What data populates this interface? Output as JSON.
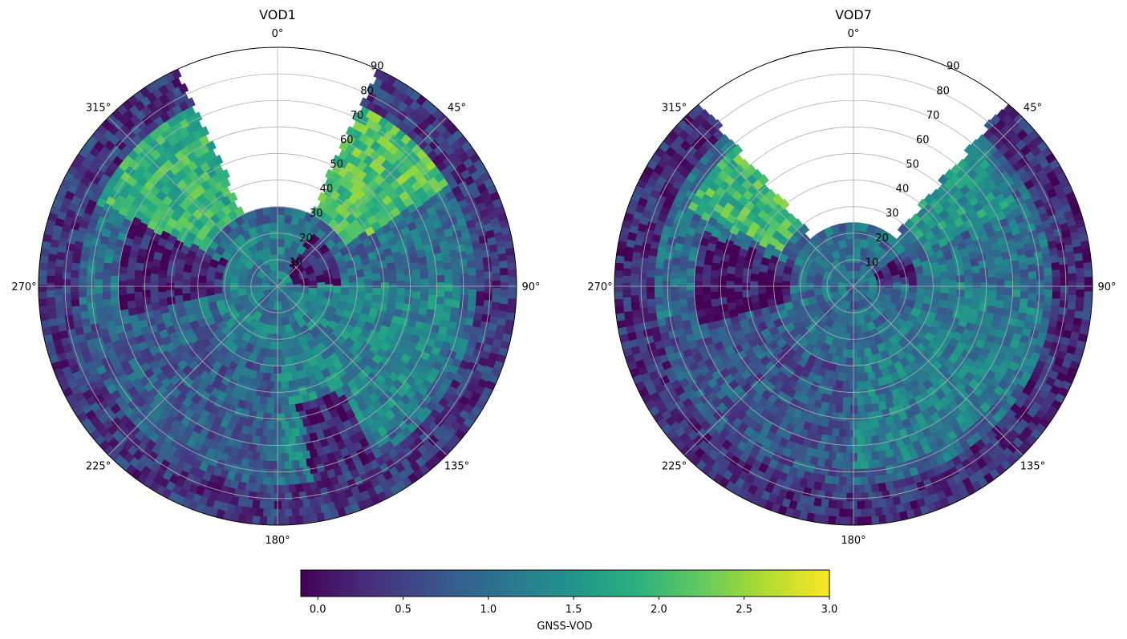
{
  "chart_data": [
    {
      "type": "heatmap",
      "subtype": "polar",
      "title": "VOD1",
      "theta_zero_location": "N",
      "theta_direction": "clockwise",
      "theta_ticks": [
        "0°",
        "45°",
        "90°",
        "135°",
        "180°",
        "225°",
        "270°",
        "315°"
      ],
      "r_ticks": [
        "10",
        "20",
        "30",
        "40",
        "50",
        "60",
        "70",
        "80",
        "90"
      ],
      "r_range": [
        0,
        90
      ],
      "grid": true,
      "value_range": [
        -0.1,
        3.0
      ],
      "regions": [
        {
          "az": [
            0,
            360
          ],
          "r": [
            0,
            25
          ],
          "value": 1.2
        },
        {
          "az": [
            35,
            90
          ],
          "r": [
            5,
            25
          ],
          "value": 0.2
        },
        {
          "az": [
            90,
            180
          ],
          "r": [
            25,
            70
          ],
          "value": 1.3
        },
        {
          "az": [
            150,
            170
          ],
          "r": [
            45,
            75
          ],
          "value": 0.2
        },
        {
          "az": [
            180,
            260
          ],
          "r": [
            30,
            75
          ],
          "value": 0.8
        },
        {
          "az": [
            260,
            295
          ],
          "r": [
            20,
            60
          ],
          "value": 0.2
        },
        {
          "az": [
            295,
            335
          ],
          "r": [
            30,
            75
          ],
          "value": 1.9
        },
        {
          "az": [
            20,
            60
          ],
          "r": [
            30,
            75
          ],
          "value": 2.1
        },
        {
          "az": [
            0,
            360
          ],
          "r": [
            75,
            90
          ],
          "value": 0.4
        }
      ],
      "empty_sectors": [
        {
          "az": [
            335,
            25
          ],
          "r": [
            30,
            90
          ]
        }
      ]
    },
    {
      "type": "heatmap",
      "subtype": "polar",
      "title": "VOD7",
      "theta_zero_location": "N",
      "theta_direction": "clockwise",
      "theta_ticks": [
        "0°",
        "45°",
        "90°",
        "135°",
        "180°",
        "225°",
        "270°",
        "315°"
      ],
      "r_ticks": [
        "10",
        "20",
        "30",
        "40",
        "50",
        "60",
        "70",
        "80",
        "90"
      ],
      "r_range": [
        0,
        90
      ],
      "grid": true,
      "value_range": [
        -0.1,
        3.0
      ],
      "regions": [
        {
          "az": [
            0,
            360
          ],
          "r": [
            0,
            20
          ],
          "value": 1.0
        },
        {
          "az": [
            60,
            90
          ],
          "r": [
            10,
            25
          ],
          "value": 0.1
        },
        {
          "az": [
            90,
            180
          ],
          "r": [
            25,
            70
          ],
          "value": 1.2
        },
        {
          "az": [
            180,
            260
          ],
          "r": [
            30,
            75
          ],
          "value": 0.7
        },
        {
          "az": [
            255,
            290
          ],
          "r": [
            25,
            60
          ],
          "value": 0.1
        },
        {
          "az": [
            295,
            325
          ],
          "r": [
            30,
            70
          ],
          "value": 2.0
        },
        {
          "az": [
            40,
            65
          ],
          "r": [
            30,
            70
          ],
          "value": 1.5
        },
        {
          "az": [
            0,
            360
          ],
          "r": [
            75,
            90
          ],
          "value": 0.3
        }
      ],
      "empty_sectors": [
        {
          "az": [
            320,
            40
          ],
          "r": [
            25,
            90
          ]
        }
      ]
    }
  ],
  "colorbar": {
    "label": "GNSS-VOD",
    "ticks": [
      "0.0",
      "0.5",
      "1.0",
      "1.5",
      "2.0",
      "2.5",
      "3.0"
    ],
    "tick_values": [
      0.0,
      0.5,
      1.0,
      1.5,
      2.0,
      2.5,
      3.0
    ],
    "range": [
      -0.1,
      3.0
    ],
    "colormap": "viridis",
    "colormap_stops": [
      "#440154",
      "#472d7b",
      "#3b528b",
      "#2c728e",
      "#21918c",
      "#28ae80",
      "#5ec962",
      "#addc30",
      "#fde725"
    ]
  }
}
